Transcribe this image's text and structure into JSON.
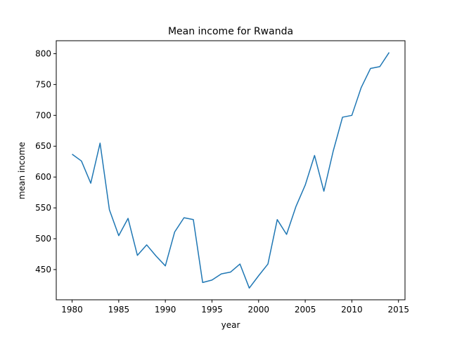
{
  "chart_data": {
    "type": "line",
    "title": "Mean income for Rwanda",
    "xlabel": "year",
    "ylabel": "mean income",
    "xlim": [
      1978.3,
      2015.7
    ],
    "ylim": [
      401,
      821
    ],
    "xticks": [
      1980,
      1985,
      1990,
      1995,
      2000,
      2005,
      2010,
      2015
    ],
    "yticks": [
      450,
      500,
      550,
      600,
      650,
      700,
      750,
      800
    ],
    "grid": false,
    "series": [
      {
        "color": "#1f77b4",
        "x": [
          1980,
          1981,
          1982,
          1983,
          1984,
          1985,
          1986,
          1987,
          1988,
          1989,
          1990,
          1991,
          1992,
          1993,
          1994,
          1995,
          1996,
          1997,
          1998,
          1999,
          2000,
          2001,
          2002,
          2003,
          2004,
          2005,
          2006,
          2007,
          2008,
          2009,
          2010,
          2011,
          2012,
          2013,
          2014
        ],
        "y": [
          637,
          626,
          590,
          655,
          547,
          505,
          533,
          473,
          490,
          472,
          456,
          511,
          534,
          531,
          429,
          433,
          443,
          446,
          459,
          420,
          440,
          459,
          531,
          507,
          552,
          587,
          635,
          577,
          642,
          697,
          700,
          745,
          776,
          779,
          802
        ]
      }
    ]
  }
}
